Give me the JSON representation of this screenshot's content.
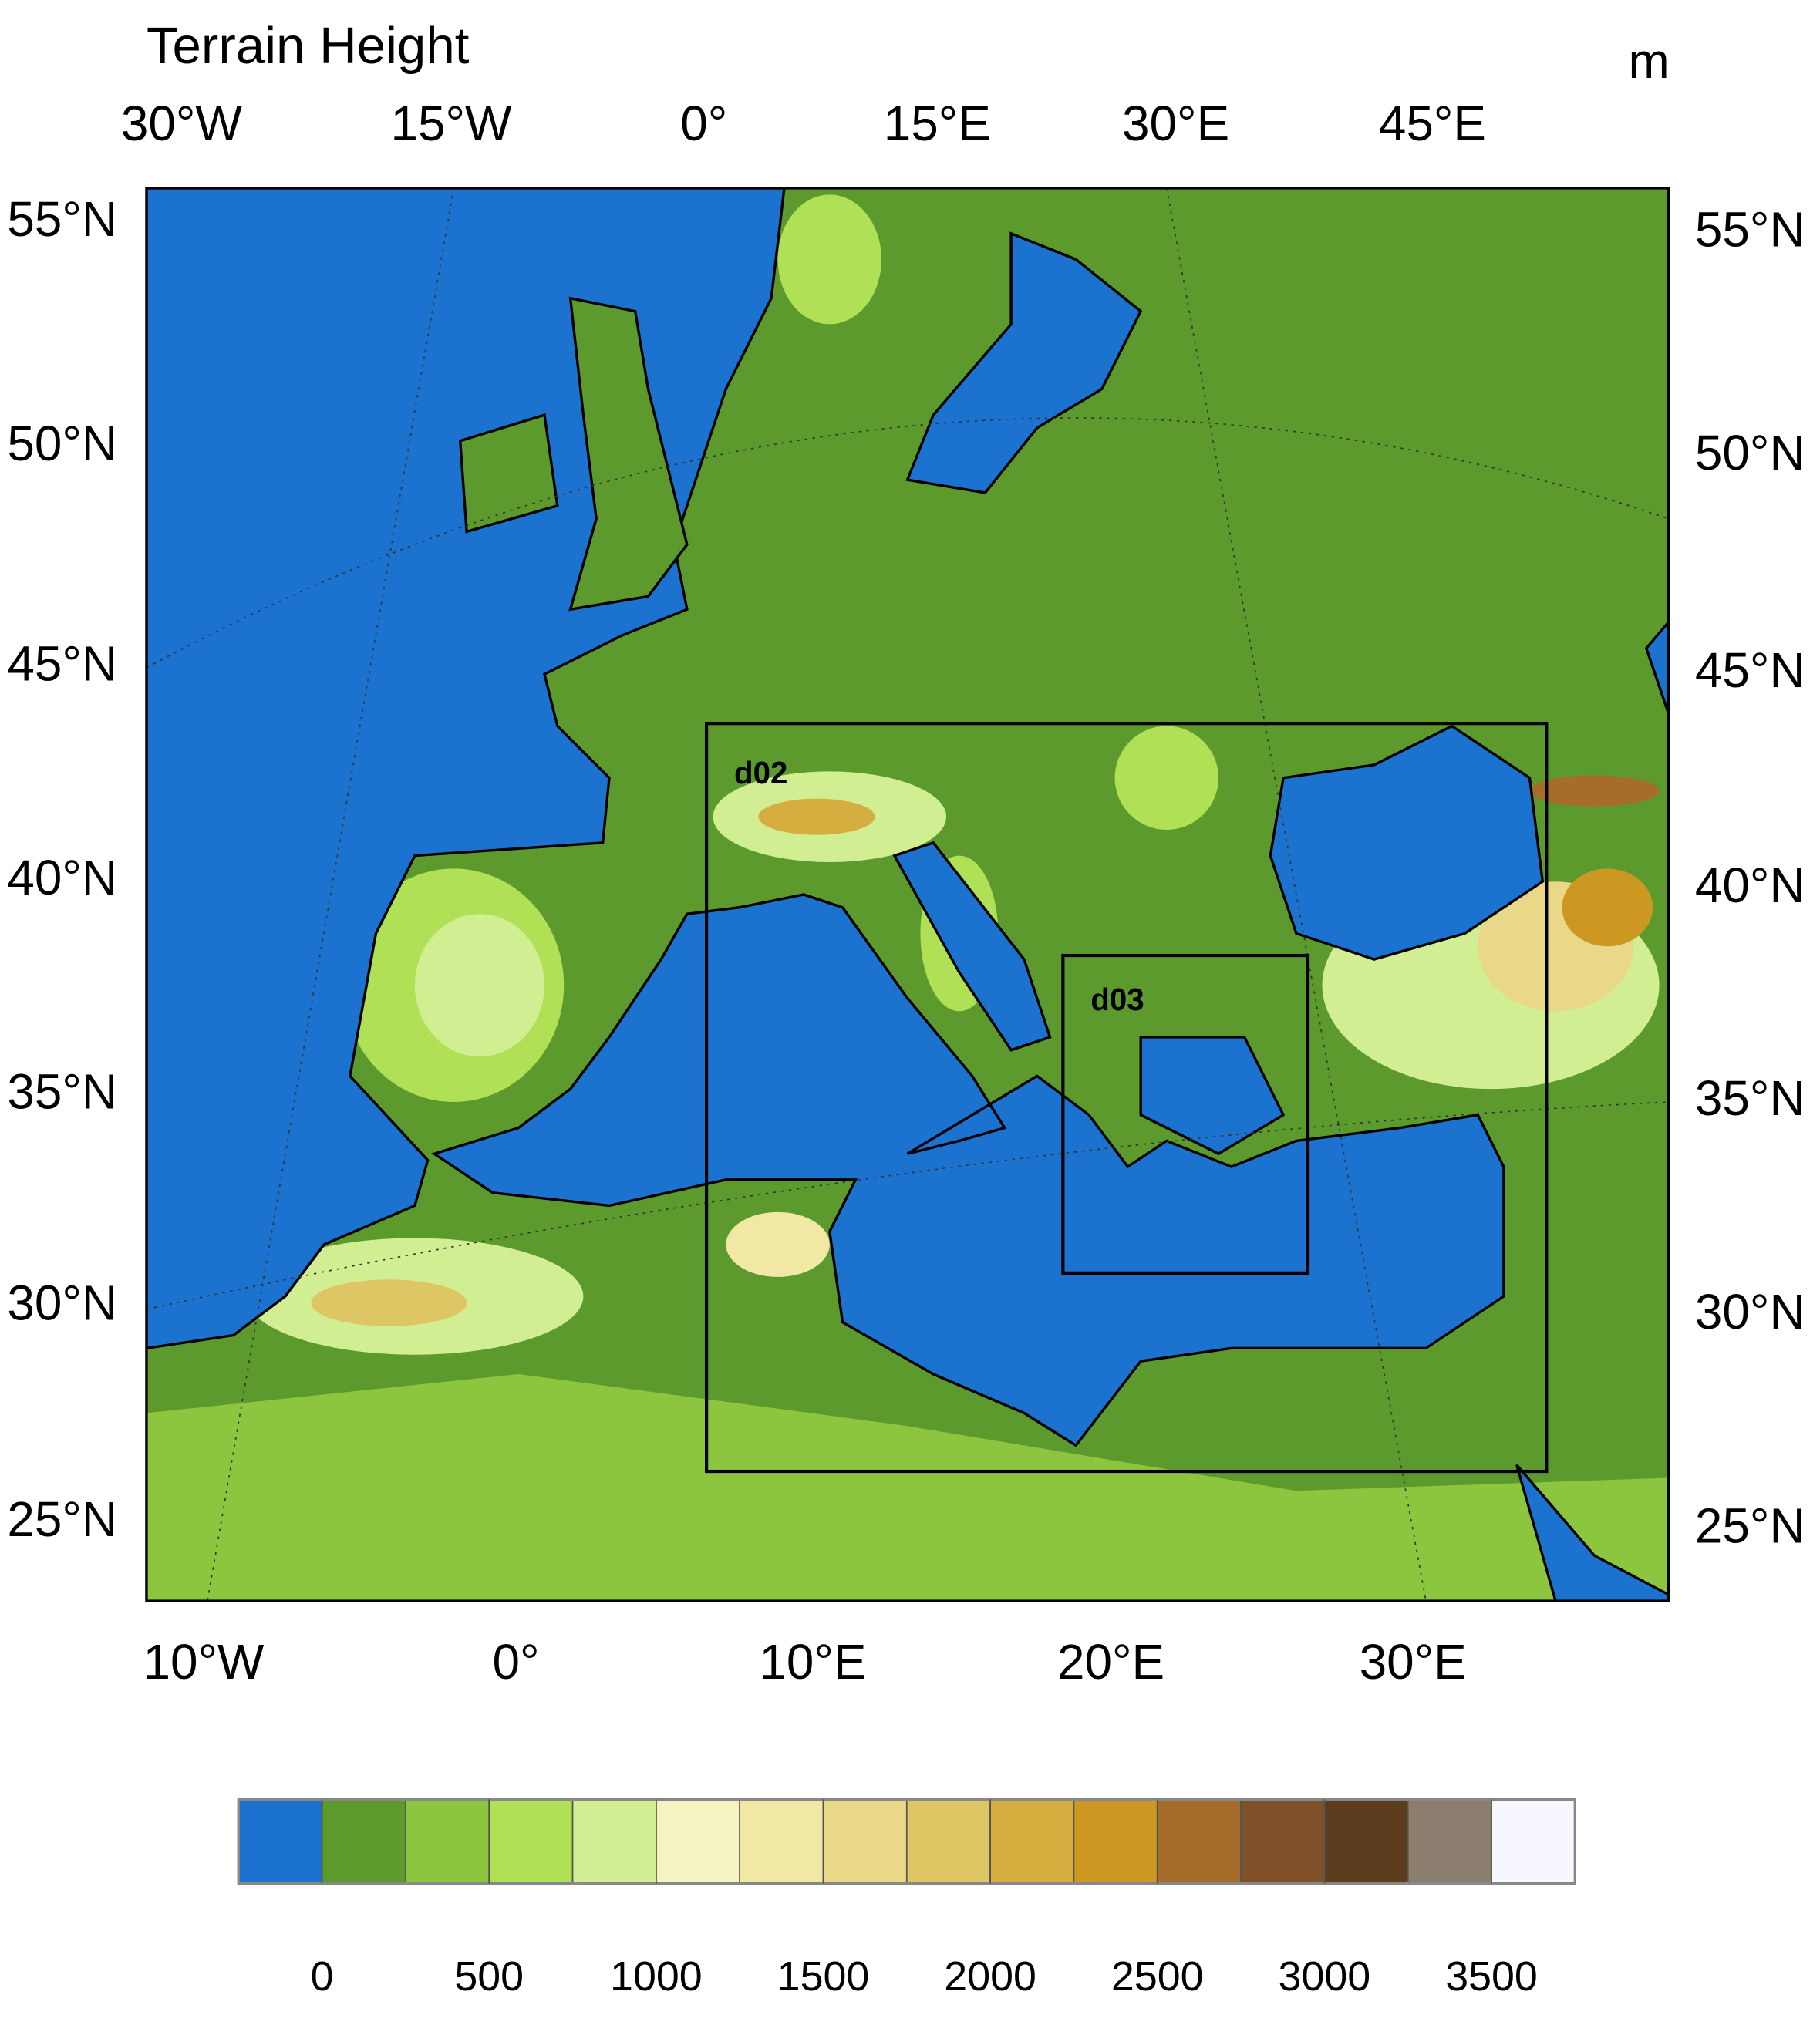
{
  "title": "Terrain Height",
  "unit": "m",
  "top_lon_labels": [
    "30°W",
    "15°W",
    "0°",
    "15°E",
    "30°E",
    "45°E"
  ],
  "bottom_lon_labels": [
    "10°W",
    "0°",
    "10°E",
    "20°E",
    "30°E"
  ],
  "left_lat_labels": [
    "55°N",
    "50°N",
    "45°N",
    "40°N",
    "35°N",
    "30°N",
    "25°N"
  ],
  "right_lat_labels": [
    "55°N",
    "50°N",
    "45°N",
    "40°N",
    "35°N",
    "30°N",
    "25°N"
  ],
  "domains": [
    "d02",
    "d03"
  ],
  "colorbar": {
    "colors": [
      "#1c72cf",
      "#5c9a2e",
      "#8cc63f",
      "#b0e056",
      "#d2ee92",
      "#f4f4c2",
      "#f2e8a6",
      "#e8d888",
      "#dfc664",
      "#d6ae40",
      "#cc9822",
      "#a66c2a",
      "#805028",
      "#5e3c1e",
      "#8c7e6e",
      "#f7f8ff"
    ],
    "clim": [
      -250,
      3750
    ],
    "ticks": [
      0,
      500,
      1000,
      1500,
      2000,
      2500,
      3000,
      3500
    ]
  }
}
